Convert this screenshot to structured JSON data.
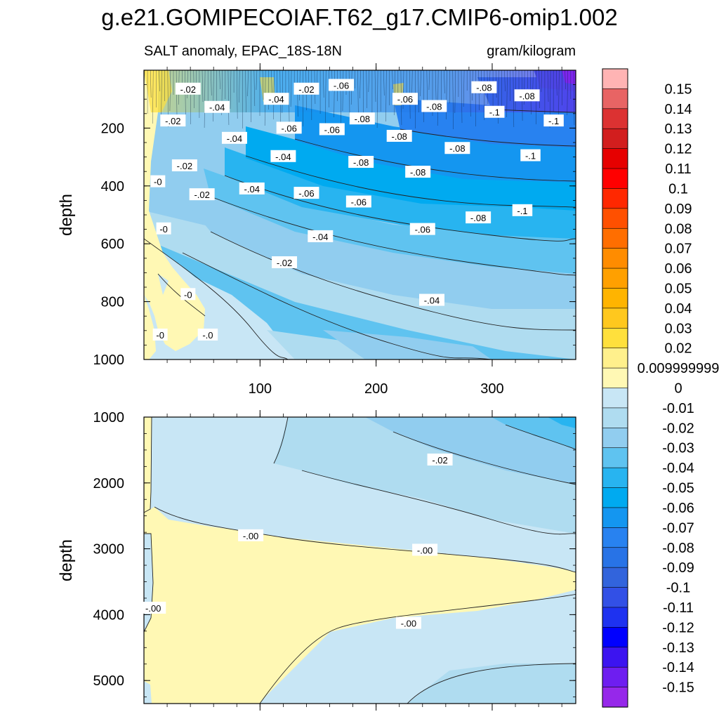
{
  "title": "g.e21.GOMIPECOIAF.T62_g17.CMIP6-omip1.002",
  "subtitle_left": "SALT anomaly, EPAC_18S-18N",
  "subtitle_right": "gram/kilogram",
  "chart_data": {
    "type": "heatmap",
    "title": "g.e21.GOMIPECOIAF.T62_g17.CMIP6-omip1.002",
    "subtitle": "SALT anomaly, EPAC_18S-18N",
    "units": "gram/kilogram",
    "xlim": [
      0,
      372
    ],
    "x_ticks": [
      100,
      200,
      300
    ],
    "panels": [
      {
        "name": "upper",
        "ylabel": "depth",
        "ylim": [
          1000,
          0
        ],
        "y_ticks": [
          200,
          400,
          600,
          800,
          1000
        ],
        "contour_labels": [
          {
            "text": "-.02",
            "x": 38,
            "y": 65
          },
          {
            "text": "-.04",
            "x": 63,
            "y": 128
          },
          {
            "text": "-.04",
            "x": 114,
            "y": 100
          },
          {
            "text": "-.02",
            "x": 140,
            "y": 65
          },
          {
            "text": "-.06",
            "x": 170,
            "y": 52
          },
          {
            "text": "-.06",
            "x": 225,
            "y": 100
          },
          {
            "text": "-.08",
            "x": 250,
            "y": 125
          },
          {
            "text": "-.08",
            "x": 293,
            "y": 60
          },
          {
            "text": "-.08",
            "x": 330,
            "y": 88
          },
          {
            "text": "-.1",
            "x": 302,
            "y": 145
          },
          {
            "text": "-.1",
            "x": 353,
            "y": 175
          },
          {
            "text": "-.02",
            "x": 25,
            "y": 175
          },
          {
            "text": "-.04",
            "x": 78,
            "y": 235
          },
          {
            "text": "-.06",
            "x": 125,
            "y": 200
          },
          {
            "text": "-.06",
            "x": 162,
            "y": 205
          },
          {
            "text": "-.08",
            "x": 188,
            "y": 168
          },
          {
            "text": "-.08",
            "x": 220,
            "y": 228
          },
          {
            "text": "-.08",
            "x": 187,
            "y": 318
          },
          {
            "text": "-.08",
            "x": 270,
            "y": 270
          },
          {
            "text": "-.04",
            "x": 120,
            "y": 298
          },
          {
            "text": "-.02",
            "x": 35,
            "y": 330
          },
          {
            "text": "-.1",
            "x": 333,
            "y": 295
          },
          {
            "text": "-.08",
            "x": 236,
            "y": 352
          },
          {
            "text": "-0",
            "x": 12,
            "y": 385
          },
          {
            "text": "-.04",
            "x": 93,
            "y": 410
          },
          {
            "text": "-.02",
            "x": 50,
            "y": 430
          },
          {
            "text": "-.06",
            "x": 140,
            "y": 425
          },
          {
            "text": "-.06",
            "x": 185,
            "y": 455
          },
          {
            "text": "-.08",
            "x": 288,
            "y": 510
          },
          {
            "text": "-.1",
            "x": 326,
            "y": 485
          },
          {
            "text": "-.06",
            "x": 240,
            "y": 550
          },
          {
            "text": "-0",
            "x": 17,
            "y": 548
          },
          {
            "text": "-.04",
            "x": 152,
            "y": 575
          },
          {
            "text": "-.02",
            "x": 121,
            "y": 665
          },
          {
            "text": "-.04",
            "x": 248,
            "y": 795
          },
          {
            "text": "-0",
            "x": 38,
            "y": 775
          },
          {
            "text": "-0",
            "x": 14,
            "y": 915
          },
          {
            "text": "-.0",
            "x": 55,
            "y": 915
          }
        ]
      },
      {
        "name": "lower",
        "ylabel": "depth",
        "ylim": [
          5350,
          1000
        ],
        "y_ticks": [
          1000,
          2000,
          3000,
          4000,
          5000
        ],
        "contour_labels": [
          {
            "text": "-.02",
            "x": 255,
            "y": 1650
          },
          {
            "text": "-.00",
            "x": 92,
            "y": 2800
          },
          {
            "text": "-.00",
            "x": 242,
            "y": 3020
          },
          {
            "text": "-.00",
            "x": 8,
            "y": 3900
          },
          {
            "text": "-.00",
            "x": 228,
            "y": 4130
          }
        ]
      }
    ],
    "colorbar": {
      "levels": [
        "0.15",
        "0.14",
        "0.13",
        "0.12",
        "0.11",
        "0.1",
        "0.09",
        "0.08",
        "0.07",
        "0.06",
        "0.05",
        "0.04",
        "0.03",
        "0.02",
        "0.009999999",
        "0",
        "-0.01",
        "-0.02",
        "-0.03",
        "-0.04",
        "-0.05",
        "-0.06",
        "-0.07",
        "-0.08",
        "-0.09",
        "-0.1",
        "-0.11",
        "-0.12",
        "-0.13",
        "-0.14",
        "-0.15"
      ],
      "colors": [
        "#ffb4b4",
        "#e86464",
        "#dc3232",
        "#d21e1e",
        "#e60000",
        "#ff0000",
        "#ff2800",
        "#ff5000",
        "#ff6e00",
        "#ff8c00",
        "#ffa000",
        "#ffb400",
        "#ffc81e",
        "#ffe03c",
        "#fff08c",
        "#fff8b4",
        "#c8e6f5",
        "#afdcf0",
        "#91cdef",
        "#5fc3f0",
        "#28b4f0",
        "#00aaf0",
        "#1496f0",
        "#2882f0",
        "#2873e6",
        "#3264dc",
        "#3250e6",
        "#1e32f0",
        "#0000ff",
        "#3c14f0",
        "#6e1ef0",
        "#9628ea"
      ]
    }
  }
}
